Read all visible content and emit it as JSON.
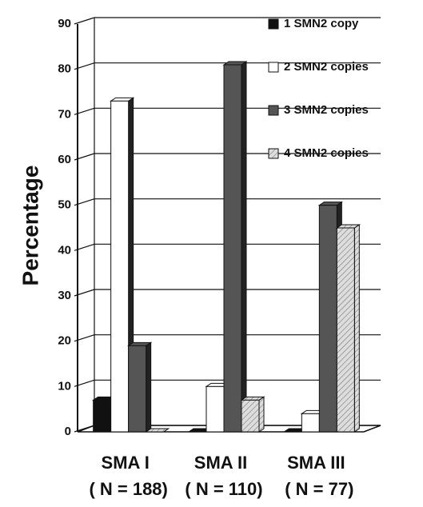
{
  "chart_data": {
    "type": "bar3d",
    "y_label": "Percentage",
    "categories": [
      "SMA I",
      "SMA II",
      "SMA III"
    ],
    "category_sublabels": [
      "( N = 188)",
      "( N = 110)",
      "( N = 77)"
    ],
    "series": [
      {
        "name": "1 SMN2 copy",
        "color": "#111111",
        "values": [
          7,
          0,
          0
        ]
      },
      {
        "name": "2 SMN2 copies",
        "color": "#ffffff",
        "values": [
          73,
          10,
          4
        ]
      },
      {
        "name": "3 SMN2 copies",
        "color": "#555555",
        "values": [
          19,
          81,
          50
        ]
      },
      {
        "name": "4 SMN2 copies",
        "color": "#dddddd",
        "hatched": true,
        "values": [
          0,
          7,
          45
        ]
      }
    ],
    "ylim": [
      0,
      90
    ],
    "yticks": [
      0,
      10,
      20,
      30,
      40,
      50,
      60,
      70,
      80,
      90
    ],
    "grid": true
  }
}
